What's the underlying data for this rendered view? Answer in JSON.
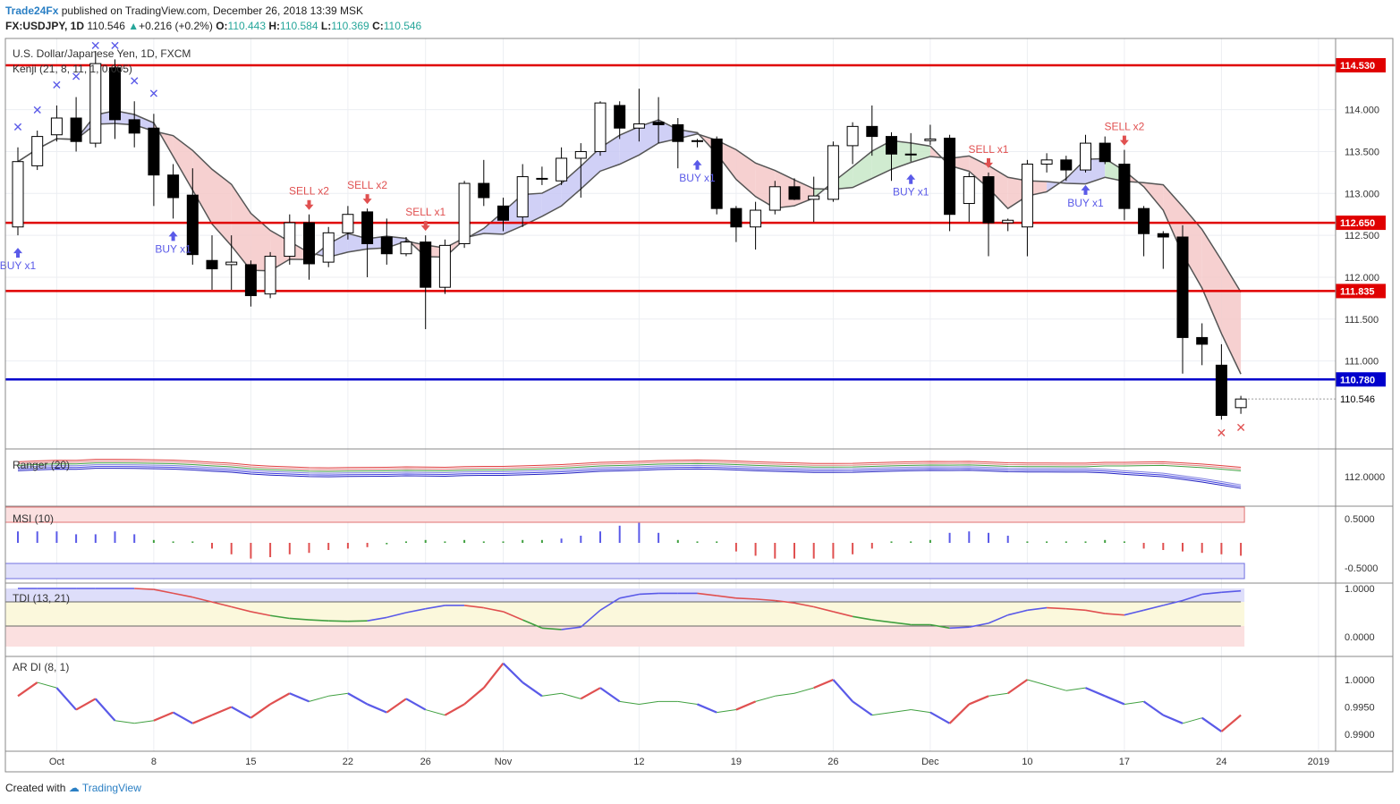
{
  "header": {
    "publisher": "Trade24Fx",
    "published_text": "published on TradingView.com, December 26, 2018 13:39 MSK",
    "symbol": "FX:USDJPY, 1D",
    "last": "110.546",
    "change": "+0.216 (+0.2%)",
    "o_label": "O:",
    "o_value": "110.443",
    "h_label": "H:",
    "h_value": "110.584",
    "l_label": "L:",
    "l_value": "110.369",
    "c_label": "C:",
    "c_value": "110.546"
  },
  "footer": {
    "created_with": "Created with",
    "brand": "TradingView"
  },
  "colors": {
    "bull_body": "#ffffff",
    "bear_body": "#000000",
    "red_level": "#e00000",
    "blue_level": "#0000cc",
    "signal_red": "#e05050",
    "signal_blue": "#5a5ae8",
    "cloud_blue": "#c8c8f4",
    "cloud_green": "#c8e8c8",
    "cloud_red": "#f4c8c8"
  },
  "chart_data": {
    "type": "candlestick",
    "title": "U.S. Dollar/Japanese Yen, 1D, FXCM",
    "indicator_label": "Kenji (21, 8, 11, 1, 0.005)",
    "ylim": [
      109.95,
      114.85
    ],
    "yticks": [
      "114.000",
      "113.500",
      "113.000",
      "112.500",
      "112.000",
      "111.500",
      "111.000",
      "110.546"
    ],
    "x_labels": [
      "Oct",
      "8",
      "15",
      "22",
      "26",
      "Nov",
      "12",
      "19",
      "26",
      "Dec",
      "10",
      "17",
      "24",
      "2019"
    ],
    "levels": [
      {
        "price": 114.53,
        "label": "114.530",
        "color": "red"
      },
      {
        "price": 112.65,
        "label": "112.650",
        "color": "red"
      },
      {
        "price": 111.835,
        "label": "111.835",
        "color": "red"
      },
      {
        "price": 110.78,
        "label": "110.780",
        "color": "blue"
      }
    ],
    "last_price": 110.546,
    "candles": [
      {
        "o": 112.6,
        "h": 113.55,
        "l": 112.5,
        "c": 113.38
      },
      {
        "o": 113.33,
        "h": 113.75,
        "l": 113.28,
        "c": 113.68
      },
      {
        "o": 113.7,
        "h": 114.05,
        "l": 113.62,
        "c": 113.9
      },
      {
        "o": 113.9,
        "h": 114.15,
        "l": 113.5,
        "c": 113.62
      },
      {
        "o": 113.6,
        "h": 114.7,
        "l": 113.55,
        "c": 114.55
      },
      {
        "o": 114.5,
        "h": 114.6,
        "l": 113.65,
        "c": 113.88
      },
      {
        "o": 113.88,
        "h": 114.1,
        "l": 113.55,
        "c": 113.72
      },
      {
        "o": 113.78,
        "h": 113.95,
        "l": 112.85,
        "c": 113.22
      },
      {
        "o": 113.22,
        "h": 113.35,
        "l": 112.7,
        "c": 112.95
      },
      {
        "o": 112.98,
        "h": 113.3,
        "l": 112.15,
        "c": 112.27
      },
      {
        "o": 112.2,
        "h": 112.5,
        "l": 111.85,
        "c": 112.1
      },
      {
        "o": 112.15,
        "h": 112.5,
        "l": 111.85,
        "c": 112.18
      },
      {
        "o": 112.15,
        "h": 112.2,
        "l": 111.65,
        "c": 111.78
      },
      {
        "o": 111.8,
        "h": 112.3,
        "l": 111.75,
        "c": 112.25
      },
      {
        "o": 112.25,
        "h": 112.75,
        "l": 112.15,
        "c": 112.65
      },
      {
        "o": 112.65,
        "h": 112.75,
        "l": 111.97,
        "c": 112.16
      },
      {
        "o": 112.18,
        "h": 112.6,
        "l": 112.12,
        "c": 112.53
      },
      {
        "o": 112.53,
        "h": 112.85,
        "l": 112.45,
        "c": 112.75
      },
      {
        "o": 112.78,
        "h": 112.82,
        "l": 112.0,
        "c": 112.4
      },
      {
        "o": 112.48,
        "h": 112.7,
        "l": 112.15,
        "c": 112.28
      },
      {
        "o": 112.28,
        "h": 112.48,
        "l": 112.25,
        "c": 112.42
      },
      {
        "o": 112.42,
        "h": 112.5,
        "l": 111.38,
        "c": 111.88
      },
      {
        "o": 111.88,
        "h": 112.45,
        "l": 111.8,
        "c": 112.38
      },
      {
        "o": 112.4,
        "h": 113.15,
        "l": 112.35,
        "c": 113.12
      },
      {
        "o": 113.12,
        "h": 113.4,
        "l": 112.85,
        "c": 112.95
      },
      {
        "o": 112.85,
        "h": 112.95,
        "l": 112.55,
        "c": 112.68
      },
      {
        "o": 112.72,
        "h": 113.35,
        "l": 112.6,
        "c": 113.2
      },
      {
        "o": 113.18,
        "h": 113.32,
        "l": 113.1,
        "c": 113.18
      },
      {
        "o": 113.15,
        "h": 113.55,
        "l": 113.1,
        "c": 113.42
      },
      {
        "o": 113.42,
        "h": 113.6,
        "l": 112.95,
        "c": 113.5
      },
      {
        "o": 113.5,
        "h": 114.1,
        "l": 113.45,
        "c": 114.08
      },
      {
        "o": 114.05,
        "h": 114.1,
        "l": 113.65,
        "c": 113.78
      },
      {
        "o": 113.78,
        "h": 114.25,
        "l": 113.62,
        "c": 113.83
      },
      {
        "o": 113.85,
        "h": 114.15,
        "l": 113.6,
        "c": 113.82
      },
      {
        "o": 113.82,
        "h": 113.9,
        "l": 113.3,
        "c": 113.62
      },
      {
        "o": 113.62,
        "h": 113.65,
        "l": 113.55,
        "c": 113.63
      },
      {
        "o": 113.65,
        "h": 113.68,
        "l": 112.75,
        "c": 112.82
      },
      {
        "o": 112.82,
        "h": 112.85,
        "l": 112.42,
        "c": 112.6
      },
      {
        "o": 112.6,
        "h": 112.9,
        "l": 112.33,
        "c": 112.8
      },
      {
        "o": 112.8,
        "h": 113.15,
        "l": 112.75,
        "c": 113.08
      },
      {
        "o": 113.08,
        "h": 113.18,
        "l": 112.92,
        "c": 112.93
      },
      {
        "o": 112.93,
        "h": 113.2,
        "l": 112.66,
        "c": 112.97
      },
      {
        "o": 112.93,
        "h": 113.62,
        "l": 112.9,
        "c": 113.57
      },
      {
        "o": 113.57,
        "h": 113.85,
        "l": 113.35,
        "c": 113.8
      },
      {
        "o": 113.8,
        "h": 114.05,
        "l": 113.45,
        "c": 113.68
      },
      {
        "o": 113.68,
        "h": 113.73,
        "l": 113.15,
        "c": 113.47
      },
      {
        "o": 113.47,
        "h": 113.72,
        "l": 113.38,
        "c": 113.46
      },
      {
        "o": 113.63,
        "h": 113.82,
        "l": 113.58,
        "c": 113.65
      },
      {
        "o": 113.66,
        "h": 113.7,
        "l": 112.55,
        "c": 112.75
      },
      {
        "o": 112.88,
        "h": 113.25,
        "l": 112.66,
        "c": 113.2
      },
      {
        "o": 113.2,
        "h": 113.25,
        "l": 112.25,
        "c": 112.65
      },
      {
        "o": 112.65,
        "h": 112.7,
        "l": 112.55,
        "c": 112.68
      },
      {
        "o": 112.6,
        "h": 113.4,
        "l": 112.25,
        "c": 113.35
      },
      {
        "o": 113.35,
        "h": 113.48,
        "l": 113.25,
        "c": 113.4
      },
      {
        "o": 113.4,
        "h": 113.45,
        "l": 113.15,
        "c": 113.28
      },
      {
        "o": 113.28,
        "h": 113.7,
        "l": 113.25,
        "c": 113.6
      },
      {
        "o": 113.6,
        "h": 113.68,
        "l": 113.35,
        "c": 113.38
      },
      {
        "o": 113.35,
        "h": 113.52,
        "l": 112.68,
        "c": 112.82
      },
      {
        "o": 112.82,
        "h": 112.85,
        "l": 112.25,
        "c": 112.52
      },
      {
        "o": 112.52,
        "h": 112.55,
        "l": 112.1,
        "c": 112.48
      },
      {
        "o": 112.48,
        "h": 112.62,
        "l": 110.85,
        "c": 111.28
      },
      {
        "o": 111.28,
        "h": 111.45,
        "l": 110.95,
        "c": 111.2
      },
      {
        "o": 110.95,
        "h": 111.2,
        "l": 110.3,
        "c": 110.35
      },
      {
        "o": 110.443,
        "h": 110.584,
        "l": 110.369,
        "c": 110.546
      }
    ],
    "signals": [
      {
        "type": "buy",
        "label": "BUY x1",
        "bar": 0
      },
      {
        "type": "buy",
        "label": "BUY x1",
        "bar": 8
      },
      {
        "type": "sell",
        "label": "SELL x2",
        "bar": 15
      },
      {
        "type": "sell",
        "label": "SELL x2",
        "bar": 18
      },
      {
        "type": "sell",
        "label": "SELL x1",
        "bar": 21
      },
      {
        "type": "buy",
        "label": "BUY x1",
        "bar": 35
      },
      {
        "type": "buy",
        "label": "BUY x1",
        "bar": 46
      },
      {
        "type": "sell",
        "label": "SELL x1",
        "bar": 50
      },
      {
        "type": "buy",
        "label": "BUY x1",
        "bar": 55
      },
      {
        "type": "sell",
        "label": "SELL x2",
        "bar": 57
      }
    ],
    "x_marks_blue": [
      0,
      1,
      2,
      3,
      4,
      5,
      6,
      7
    ],
    "x_marks_red": [
      62,
      63
    ],
    "panels": [
      {
        "name": "Ranger (20)",
        "ytick": "112.0000"
      },
      {
        "name": "MSI (10)",
        "yticks": [
          "0.5000",
          "-0.5000"
        ],
        "values": [
          0.4,
          0.4,
          0.4,
          0.3,
          0.3,
          0.4,
          0.3,
          0.1,
          0.05,
          0.05,
          -0.2,
          -0.4,
          -0.55,
          -0.5,
          -0.4,
          -0.35,
          -0.25,
          -0.2,
          -0.15,
          -0.05,
          0.05,
          0.1,
          0.05,
          0.1,
          0.05,
          0.05,
          0.1,
          0.1,
          0.15,
          0.25,
          0.4,
          0.6,
          0.7,
          0.35,
          0.1,
          0.05,
          0.05,
          -0.3,
          -0.45,
          -0.55,
          -0.55,
          -0.55,
          -0.55,
          -0.4,
          -0.2,
          0.05,
          0.05,
          0.1,
          0.35,
          0.4,
          0.35,
          0.25,
          0.05,
          0.05,
          0.05,
          0.05,
          0.1,
          0.05,
          -0.2,
          -0.25,
          -0.3,
          -0.35,
          -0.4,
          -0.45
        ]
      },
      {
        "name": "TDI (13, 21)",
        "yticks": [
          "1.0000",
          "0.0000"
        ],
        "values": [
          1.0,
          1.0,
          1.0,
          1.0,
          1.0,
          1.0,
          1.0,
          0.98,
          0.9,
          0.82,
          0.72,
          0.62,
          0.52,
          0.44,
          0.38,
          0.35,
          0.33,
          0.32,
          0.33,
          0.4,
          0.5,
          0.58,
          0.65,
          0.65,
          0.6,
          0.52,
          0.35,
          0.18,
          0.15,
          0.2,
          0.55,
          0.8,
          0.88,
          0.9,
          0.9,
          0.9,
          0.85,
          0.8,
          0.78,
          0.75,
          0.7,
          0.62,
          0.52,
          0.42,
          0.35,
          0.3,
          0.25,
          0.25,
          0.18,
          0.2,
          0.28,
          0.45,
          0.55,
          0.6,
          0.58,
          0.55,
          0.48,
          0.45,
          0.55,
          0.65,
          0.75,
          0.88,
          0.92,
          0.95
        ]
      },
      {
        "name": "AR DI (8, 1)",
        "yticks": [
          "1.0000",
          "0.9950",
          "0.9900"
        ],
        "values": [
          0.997,
          0.9995,
          0.9985,
          0.9945,
          0.9965,
          0.9925,
          0.992,
          0.9925,
          0.994,
          0.992,
          0.9935,
          0.995,
          0.993,
          0.9955,
          0.9975,
          0.996,
          0.997,
          0.9975,
          0.9955,
          0.994,
          0.9965,
          0.9945,
          0.9935,
          0.9955,
          0.9985,
          1.003,
          0.9995,
          0.997,
          0.9975,
          0.9965,
          0.9985,
          0.996,
          0.9955,
          0.996,
          0.996,
          0.9955,
          0.994,
          0.9945,
          0.996,
          0.997,
          0.9975,
          0.9985,
          1.0,
          0.996,
          0.9935,
          0.994,
          0.9945,
          0.994,
          0.992,
          0.9955,
          0.997,
          0.9975,
          1.0,
          0.999,
          0.998,
          0.9985,
          0.997,
          0.9955,
          0.996,
          0.9935,
          0.992,
          0.993,
          0.9905,
          0.9935
        ]
      }
    ]
  }
}
